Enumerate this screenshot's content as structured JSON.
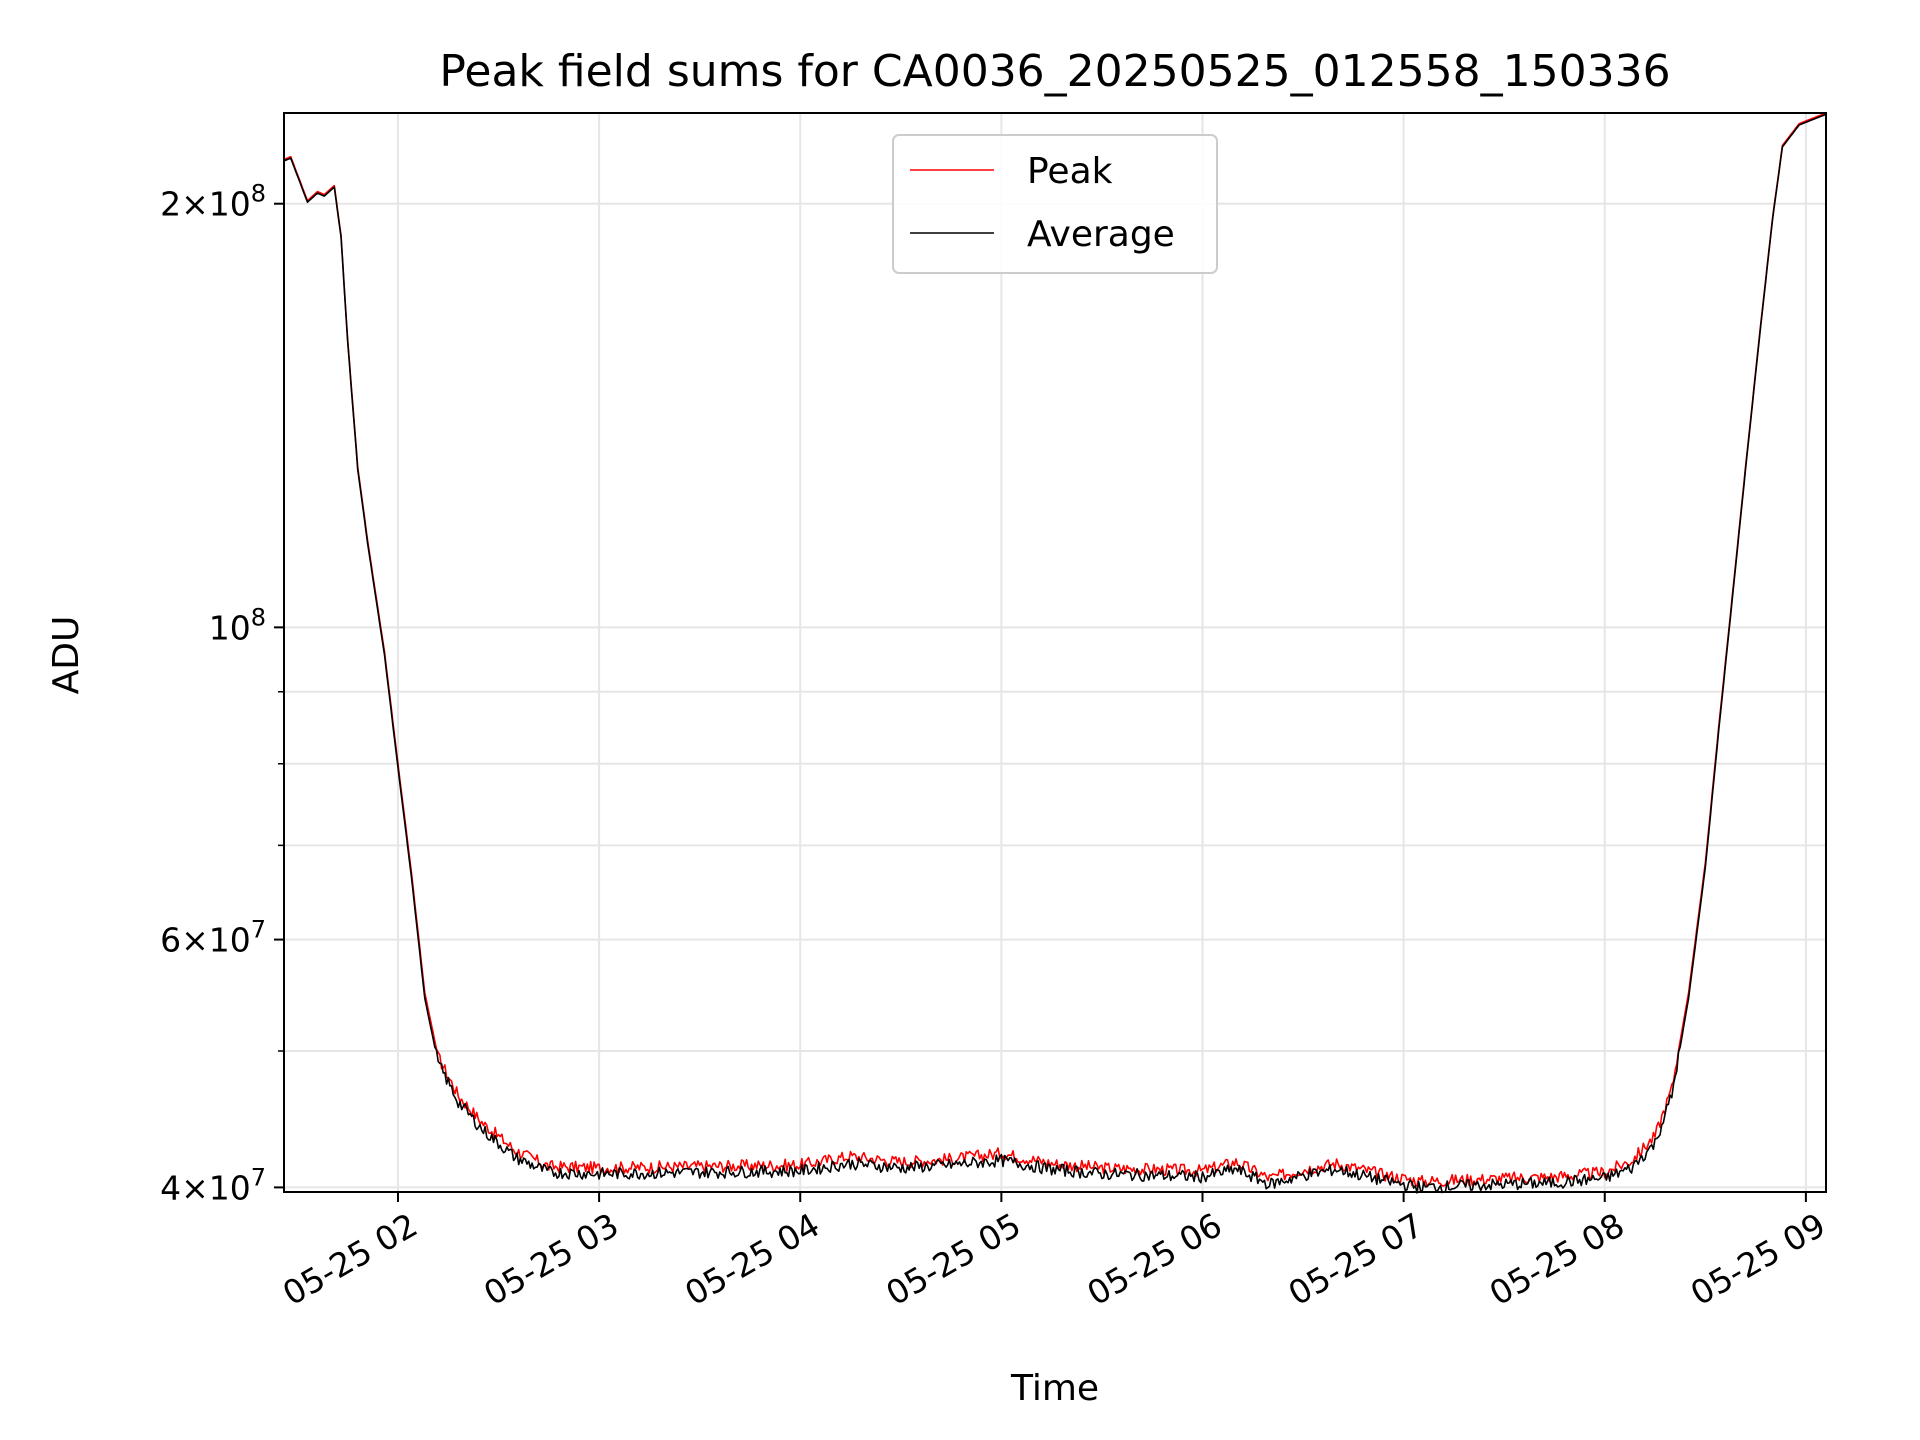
{
  "chart_data": {
    "type": "line",
    "title": "Peak field sums for CA0036_20250525_012558_150336",
    "xlabel": "Time",
    "ylabel": "ADU",
    "y_scale": "log",
    "ylim": [
      39700000,
      232000000
    ],
    "xlim": [
      "2025-05-25 01:26",
      "2025-05-25 09:06"
    ],
    "grid": true,
    "legend_position": "upper center",
    "x_tick_labels": [
      "05-25 02",
      "05-25 03",
      "05-25 04",
      "05-25 05",
      "05-25 06",
      "05-25 07",
      "05-25 08",
      "05-25 09"
    ],
    "x_ticks": [
      "2025-05-25 02:00",
      "2025-05-25 03:00",
      "2025-05-25 04:00",
      "2025-05-25 05:00",
      "2025-05-25 06:00",
      "2025-05-25 07:00",
      "2025-05-25 08:00",
      "2025-05-25 09:00"
    ],
    "y_major_ticks": [
      {
        "value": 40000000,
        "mantissa": "4",
        "exponent": "7"
      },
      {
        "value": 60000000,
        "mantissa": "6",
        "exponent": "7"
      },
      {
        "value": 100000000,
        "mantissa": "",
        "exponent": "8"
      },
      {
        "value": 200000000,
        "mantissa": "2",
        "exponent": "8"
      }
    ],
    "y_minor_ticks": [
      50000000,
      70000000,
      80000000,
      90000000
    ],
    "colors": {
      "peak": "#ff0000",
      "average": "#000000",
      "grid": "#e6e6e6"
    },
    "series": [
      {
        "name": "Peak",
        "color": "#ff0000",
        "points": [
          [
            "2025-05-25 01:26",
            215000000
          ],
          [
            "2025-05-25 01:28",
            216000000
          ],
          [
            "2025-05-25 01:33",
            201000000
          ],
          [
            "2025-05-25 01:36",
            204000000
          ],
          [
            "2025-05-25 01:38",
            203000000
          ],
          [
            "2025-05-25 01:41",
            206000000
          ],
          [
            "2025-05-25 01:43",
            190000000
          ],
          [
            "2025-05-25 01:45",
            160000000
          ],
          [
            "2025-05-25 01:48",
            130000000
          ],
          [
            "2025-05-25 01:51",
            115000000
          ],
          [
            "2025-05-25 01:56",
            96000000
          ],
          [
            "2025-05-25 02:00",
            80000000
          ],
          [
            "2025-05-25 02:04",
            67000000
          ],
          [
            "2025-05-25 02:08",
            55000000
          ],
          [
            "2025-05-25 02:12",
            49500000
          ],
          [
            "2025-05-25 02:18",
            46500000
          ],
          [
            "2025-05-25 02:25",
            44500000
          ],
          [
            "2025-05-25 02:35",
            42500000
          ],
          [
            "2025-05-25 02:45",
            41400000
          ],
          [
            "2025-05-25 03:00",
            41300000
          ],
          [
            "2025-05-25 03:30",
            41400000
          ],
          [
            "2025-05-25 04:00",
            41500000
          ],
          [
            "2025-05-25 04:15",
            42100000
          ],
          [
            "2025-05-25 04:30",
            41700000
          ],
          [
            "2025-05-25 04:45",
            41900000
          ],
          [
            "2025-05-25 05:00",
            42300000
          ],
          [
            "2025-05-25 05:15",
            41600000
          ],
          [
            "2025-05-25 05:30",
            41300000
          ],
          [
            "2025-05-25 06:00",
            41100000
          ],
          [
            "2025-05-25 06:10",
            41700000
          ],
          [
            "2025-05-25 06:20",
            40600000
          ],
          [
            "2025-05-25 06:30",
            41200000
          ],
          [
            "2025-05-25 06:40",
            41600000
          ],
          [
            "2025-05-25 06:55",
            40800000
          ],
          [
            "2025-05-25 07:05",
            40400000
          ],
          [
            "2025-05-25 07:30",
            40600000
          ],
          [
            "2025-05-25 07:45",
            40700000
          ],
          [
            "2025-05-25 08:00",
            41000000
          ],
          [
            "2025-05-25 08:08",
            41800000
          ],
          [
            "2025-05-25 08:15",
            43500000
          ],
          [
            "2025-05-25 08:20",
            47000000
          ],
          [
            "2025-05-25 08:25",
            55000000
          ],
          [
            "2025-05-25 08:30",
            68000000
          ],
          [
            "2025-05-25 08:34",
            85000000
          ],
          [
            "2025-05-25 08:38",
            105000000
          ],
          [
            "2025-05-25 08:42",
            130000000
          ],
          [
            "2025-05-25 08:46",
            160000000
          ],
          [
            "2025-05-25 08:50",
            195000000
          ],
          [
            "2025-05-25 08:53",
            220000000
          ],
          [
            "2025-05-25 08:58",
            228000000
          ],
          [
            "2025-05-25 09:06",
            232000000
          ]
        ]
      },
      {
        "name": "Average",
        "color": "#000000",
        "points": [
          [
            "2025-05-25 01:26",
            214500000
          ],
          [
            "2025-05-25 01:28",
            215500000
          ],
          [
            "2025-05-25 01:33",
            200500000
          ],
          [
            "2025-05-25 01:36",
            203500000
          ],
          [
            "2025-05-25 01:38",
            202500000
          ],
          [
            "2025-05-25 01:41",
            205500000
          ],
          [
            "2025-05-25 01:43",
            189500000
          ],
          [
            "2025-05-25 01:45",
            159500000
          ],
          [
            "2025-05-25 01:48",
            129500000
          ],
          [
            "2025-05-25 01:51",
            114500000
          ],
          [
            "2025-05-25 01:56",
            95500000
          ],
          [
            "2025-05-25 02:00",
            79500000
          ],
          [
            "2025-05-25 02:04",
            66500000
          ],
          [
            "2025-05-25 02:08",
            54500000
          ],
          [
            "2025-05-25 02:12",
            49000000
          ],
          [
            "2025-05-25 02:18",
            46000000
          ],
          [
            "2025-05-25 02:25",
            44000000
          ],
          [
            "2025-05-25 02:35",
            42000000
          ],
          [
            "2025-05-25 02:45",
            41000000
          ],
          [
            "2025-05-25 03:00",
            40900000
          ],
          [
            "2025-05-25 03:30",
            41000000
          ],
          [
            "2025-05-25 04:00",
            41100000
          ],
          [
            "2025-05-25 04:15",
            41600000
          ],
          [
            "2025-05-25 04:30",
            41300000
          ],
          [
            "2025-05-25 04:45",
            41500000
          ],
          [
            "2025-05-25 05:00",
            41800000
          ],
          [
            "2025-05-25 05:15",
            41200000
          ],
          [
            "2025-05-25 05:30",
            40900000
          ],
          [
            "2025-05-25 06:00",
            40700000
          ],
          [
            "2025-05-25 06:10",
            41200000
          ],
          [
            "2025-05-25 06:20",
            40200000
          ],
          [
            "2025-05-25 06:30",
            40800000
          ],
          [
            "2025-05-25 06:40",
            41200000
          ],
          [
            "2025-05-25 06:55",
            40400000
          ],
          [
            "2025-05-25 07:05",
            40000000
          ],
          [
            "2025-05-25 07:30",
            40200000
          ],
          [
            "2025-05-25 07:45",
            40300000
          ],
          [
            "2025-05-25 08:00",
            40600000
          ],
          [
            "2025-05-25 08:08",
            41300000
          ],
          [
            "2025-05-25 08:15",
            43000000
          ],
          [
            "2025-05-25 08:20",
            46500000
          ],
          [
            "2025-05-25 08:25",
            54500000
          ],
          [
            "2025-05-25 08:30",
            67500000
          ],
          [
            "2025-05-25 08:34",
            84500000
          ],
          [
            "2025-05-25 08:38",
            104500000
          ],
          [
            "2025-05-25 08:42",
            129500000
          ],
          [
            "2025-05-25 08:46",
            159500000
          ],
          [
            "2025-05-25 08:50",
            194500000
          ],
          [
            "2025-05-25 08:53",
            219500000
          ],
          [
            "2025-05-25 08:58",
            227500000
          ],
          [
            "2025-05-25 09:06",
            231500000
          ]
        ]
      }
    ]
  }
}
